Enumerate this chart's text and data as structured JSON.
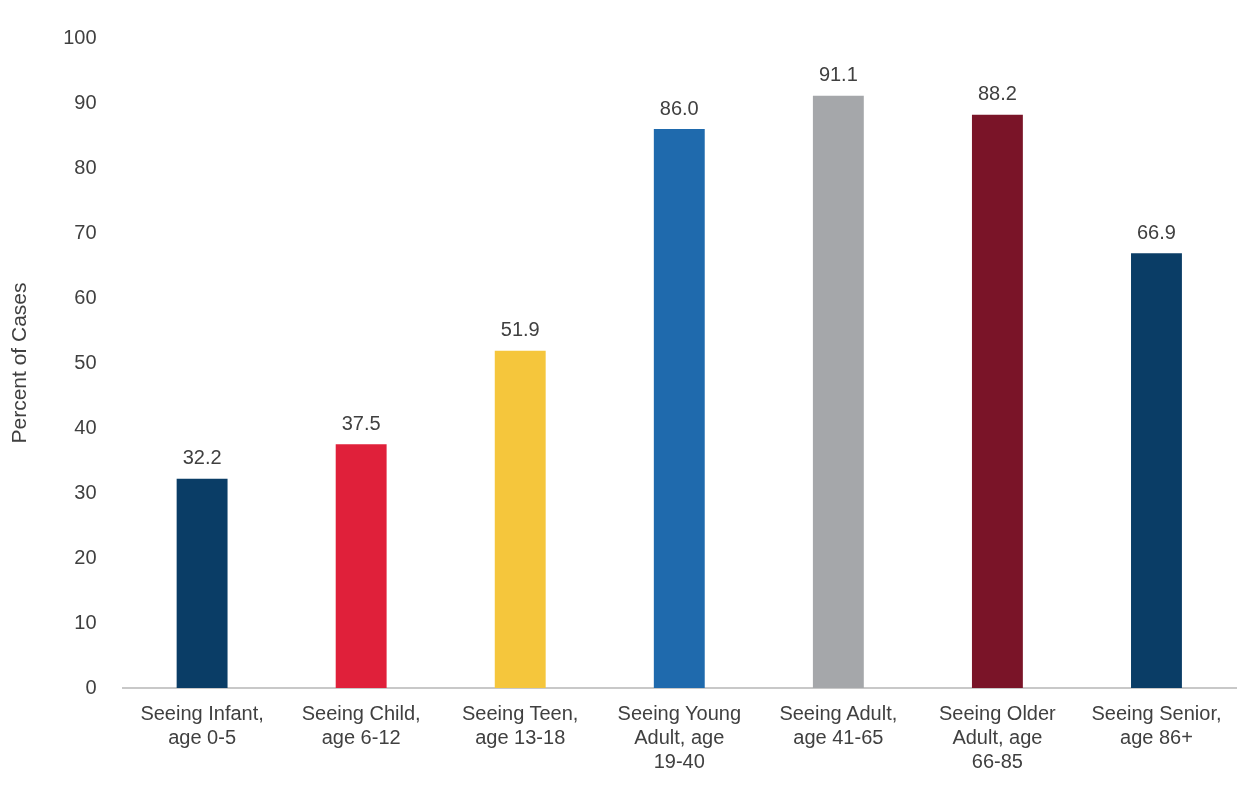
{
  "chart_data": {
    "type": "bar",
    "ylabel": "Percent of Cases",
    "categories": [
      "Seeing Infant, age 0-5",
      "Seeing Child, age 6-12",
      "Seeing Teen, age 13-18",
      "Seeing Young Adult, age 19-40",
      "Seeing Adult, age 41-65",
      "Seeing Older Adult, age 66-85",
      "Seeing Senior, age 86+"
    ],
    "values": [
      32.2,
      37.5,
      51.9,
      86.0,
      91.1,
      88.2,
      66.9
    ],
    "value_labels": [
      "32.2",
      "37.5",
      "51.9",
      "86.0",
      "91.1",
      "88.2",
      "66.9"
    ],
    "colors": [
      "#0a3d66",
      "#e0203a",
      "#f5c63c",
      "#1f6aad",
      "#a5a7aa",
      "#7a1428",
      "#0a3d66"
    ],
    "ylim": [
      0,
      100
    ],
    "yticks": [
      0,
      10,
      20,
      30,
      40,
      50,
      60,
      70,
      80,
      90,
      100
    ],
    "grid": false,
    "legend": false
  }
}
